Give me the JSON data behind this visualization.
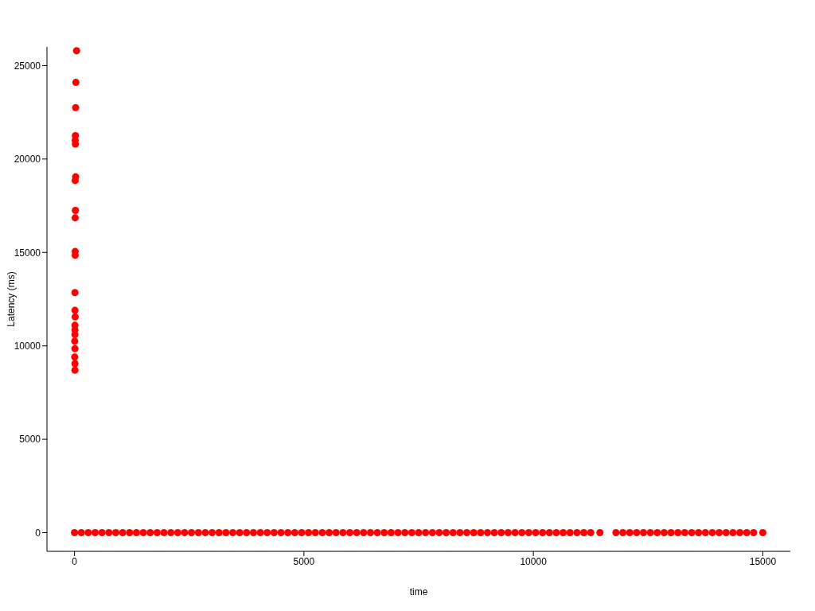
{
  "chart_data": {
    "type": "scatter",
    "xlabel": "time",
    "ylabel": "Latency (ms)",
    "xlim": [
      -600,
      15600
    ],
    "ylim": [
      -1000,
      26000
    ],
    "xticks": [
      0,
      5000,
      10000,
      15000
    ],
    "yticks": [
      0,
      5000,
      10000,
      15000,
      20000,
      25000
    ],
    "grid": false,
    "legend": false,
    "marker": "circle",
    "series": [
      {
        "color": "#ff0000",
        "x": [
          46,
          30,
          25,
          20,
          15,
          20,
          25,
          15,
          20,
          15,
          15,
          15,
          10,
          10,
          15,
          10,
          10,
          10,
          5,
          10,
          5,
          10,
          10
        ],
        "values": [
          25800,
          24100,
          22750,
          21250,
          21000,
          20800,
          19050,
          18850,
          17250,
          16850,
          15050,
          14850,
          12850,
          11900,
          11550,
          11100,
          10850,
          10600,
          10250,
          9850,
          9400,
          9050,
          8700
        ]
      },
      {
        "color": "#ff0000",
        "x": [
          0,
          150,
          300,
          450,
          600,
          750,
          900,
          1050,
          1200,
          1350,
          1500,
          1650,
          1800,
          1950,
          2100,
          2250,
          2400,
          2550,
          2700,
          2850,
          3000,
          3150,
          3300,
          3450,
          3600,
          3750,
          3900,
          4050,
          4200,
          4350,
          4500,
          4650,
          4800,
          4950,
          5100,
          5250,
          5400,
          5550,
          5700,
          5850,
          6000,
          6150,
          6300,
          6450,
          6600,
          6750,
          6900,
          7050,
          7200,
          7350,
          7500,
          7650,
          7800,
          7950,
          8100,
          8250,
          8400,
          8550,
          8700,
          8850,
          9000,
          9150,
          9300,
          9450,
          9600,
          9750,
          9900,
          10050,
          10200,
          10350,
          10500,
          10650,
          10800,
          10950,
          11100,
          11250,
          11450,
          11800,
          11950,
          12100,
          12250,
          12400,
          12550,
          12700,
          12850,
          13000,
          13150,
          13300,
          13450,
          13600,
          13750,
          13900,
          14050,
          14200,
          14350,
          14500,
          14650,
          14800,
          15000
        ],
        "values": [
          0,
          0,
          0,
          0,
          0,
          0,
          0,
          0,
          0,
          0,
          0,
          0,
          0,
          0,
          0,
          0,
          0,
          0,
          0,
          0,
          0,
          0,
          0,
          0,
          0,
          0,
          0,
          0,
          0,
          0,
          0,
          0,
          0,
          0,
          0,
          0,
          0,
          0,
          0,
          0,
          0,
          0,
          0,
          0,
          0,
          0,
          0,
          0,
          0,
          0,
          0,
          0,
          0,
          0,
          0,
          0,
          0,
          0,
          0,
          0,
          0,
          0,
          0,
          0,
          0,
          0,
          0,
          0,
          0,
          0,
          0,
          0,
          0,
          0,
          0,
          0,
          0,
          0,
          0,
          0,
          0,
          0,
          0,
          0,
          0,
          0,
          0,
          0,
          0,
          0,
          0,
          0,
          0,
          0,
          0,
          0,
          0,
          0,
          0
        ]
      }
    ]
  }
}
